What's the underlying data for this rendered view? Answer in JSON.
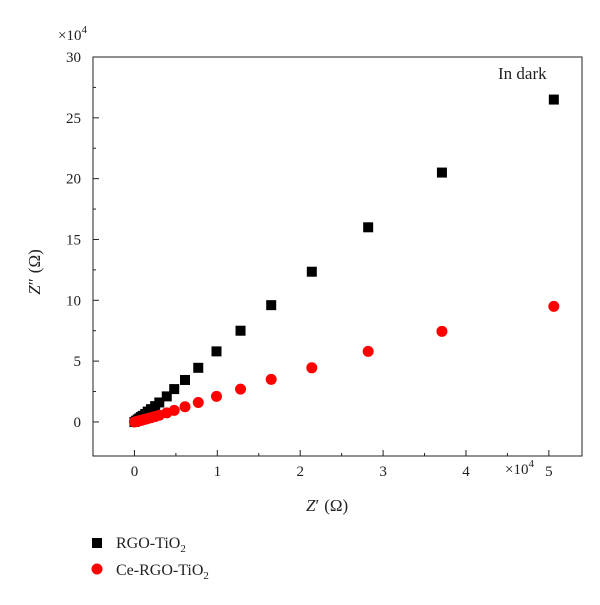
{
  "chart_data": {
    "type": "scatter",
    "annotation": "In dark",
    "x_multiplier": "×10",
    "x_multiplier_exp": "4",
    "y_multiplier": "×10",
    "y_multiplier_exp": "4",
    "xlabel": {
      "symbol": "Z",
      "prime": "′",
      "unit": "(Ω)"
    },
    "ylabel": {
      "symbol": "Z",
      "prime": "″",
      "unit": "(Ω)"
    },
    "xlim": [
      -0.5,
      5.4
    ],
    "ylim": [
      -2.8,
      30
    ],
    "xticks": [
      0,
      1,
      2,
      3,
      4,
      5
    ],
    "yticks": [
      0,
      5,
      10,
      15,
      20,
      25,
      30
    ],
    "series": [
      {
        "name": "RGO-TiO",
        "name_sub": "2",
        "marker": "square",
        "color": "#000000",
        "x": [
          0.0,
          0.02,
          0.04,
          0.06,
          0.08,
          0.1,
          0.13,
          0.16,
          0.2,
          0.25,
          0.3,
          0.39,
          0.48,
          0.61,
          0.77,
          0.99,
          1.28,
          1.65,
          2.14,
          2.82,
          3.71,
          5.06
        ],
        "y": [
          0.0,
          0.1,
          0.2,
          0.3,
          0.4,
          0.5,
          0.65,
          0.85,
          1.05,
          1.3,
          1.6,
          2.1,
          2.7,
          3.45,
          4.45,
          5.8,
          7.5,
          9.6,
          12.35,
          16.0,
          20.5,
          26.5
        ]
      },
      {
        "name": "Ce-RGO-TiO",
        "name_sub": "2",
        "marker": "circle",
        "color": "#ff0000",
        "x": [
          0.0,
          0.02,
          0.04,
          0.06,
          0.08,
          0.1,
          0.13,
          0.16,
          0.2,
          0.25,
          0.3,
          0.39,
          0.48,
          0.61,
          0.77,
          0.99,
          1.28,
          1.65,
          2.14,
          2.82,
          3.71,
          5.06
        ],
        "y": [
          0.0,
          0.03,
          0.07,
          0.1,
          0.13,
          0.17,
          0.22,
          0.28,
          0.35,
          0.45,
          0.55,
          0.75,
          0.95,
          1.25,
          1.6,
          2.1,
          2.7,
          3.5,
          4.45,
          5.8,
          7.45,
          9.5
        ]
      }
    ],
    "legend_position": "bottom-left"
  }
}
